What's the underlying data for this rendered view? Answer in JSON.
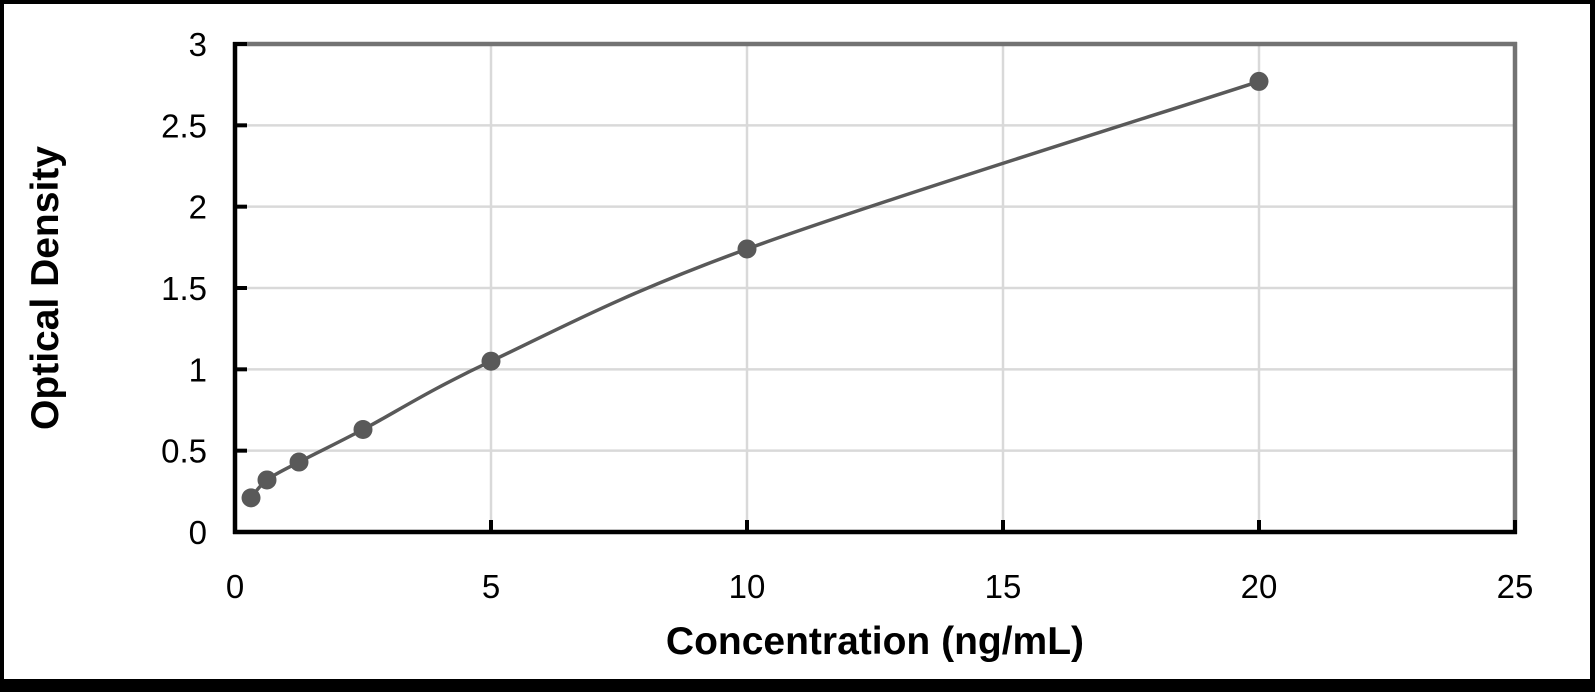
{
  "chart_data": {
    "type": "line",
    "title": "",
    "xlabel": "Concentration (ng/mL)",
    "ylabel": "Optical Density",
    "series": [
      {
        "x": [
          0.313,
          0.625,
          1.25,
          2.5,
          5,
          10,
          20
        ],
        "y": [
          0.21,
          0.32,
          0.43,
          0.63,
          1.05,
          1.74,
          2.77
        ]
      }
    ],
    "xlim": [
      0,
      25
    ],
    "ylim": [
      0,
      3
    ],
    "x_ticks": [
      0,
      5,
      10,
      15,
      20,
      25
    ],
    "x_tick_labels": [
      "0",
      "5",
      "10",
      "15",
      "20",
      "25"
    ],
    "y_ticks": [
      0,
      0.5,
      1,
      1.5,
      2,
      2.5,
      3
    ],
    "y_tick_labels": [
      "0",
      "0.5",
      "1",
      "1.5",
      "2",
      "2.5",
      "3"
    ],
    "grid": true,
    "legend": false,
    "marker": "circle",
    "smooth_line": true,
    "colors": {
      "series": "#595959",
      "gridline": "#d9d9d9",
      "plot_border": "#737373",
      "axis": "#000000",
      "text": "#000000",
      "background": "#ffffff",
      "frame": "#000000"
    }
  }
}
